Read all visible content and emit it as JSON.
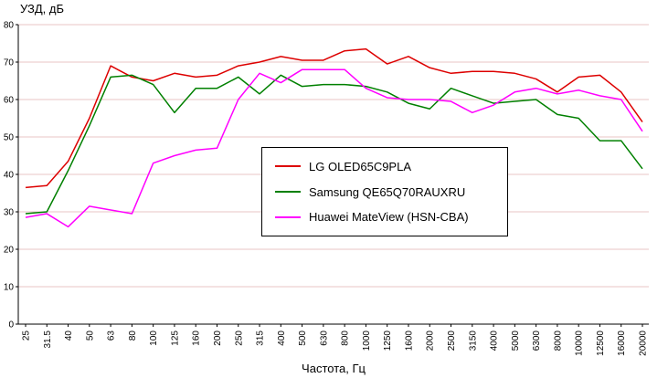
{
  "chart_data": {
    "type": "line",
    "title": "",
    "ylabel": "УЗД, дБ",
    "xlabel": "Частота, Гц",
    "ylim": [
      0,
      80
    ],
    "ytick_step": 10,
    "grid": "horizontal",
    "legend_position": "center",
    "categories": [
      "25",
      "31.5",
      "40",
      "50",
      "63",
      "80",
      "100",
      "125",
      "160",
      "200",
      "250",
      "315",
      "400",
      "500",
      "630",
      "800",
      "1000",
      "1250",
      "1600",
      "2000",
      "2500",
      "3150",
      "4000",
      "5000",
      "6300",
      "8000",
      "10000",
      "12500",
      "16000",
      "20000"
    ],
    "series": [
      {
        "name": "LG OLED65C9PLA",
        "color": "#dd0000",
        "values": [
          36.5,
          37,
          43.5,
          55,
          69,
          66,
          65,
          67,
          66,
          66.5,
          69,
          70,
          71.5,
          70.5,
          70.5,
          73,
          73.5,
          69.5,
          71.5,
          68.5,
          67,
          67.5,
          67.5,
          67,
          65.5,
          62,
          66,
          66.5,
          62,
          54
        ]
      },
      {
        "name": "Samsung QE65Q70RAUXRU",
        "color": "#008000",
        "values": [
          29.5,
          30,
          41,
          53,
          66,
          66.5,
          64,
          56.5,
          63,
          63,
          66,
          61.5,
          66.5,
          63.5,
          64,
          64,
          63.5,
          62,
          59,
          57.5,
          63,
          61,
          59,
          59.5,
          60,
          56,
          55,
          49,
          49,
          41.5
        ]
      },
      {
        "name": "Huawei MateView (HSN-CBA)",
        "color": "#ff00ff",
        "values": [
          28.5,
          29.5,
          26,
          31.5,
          30.5,
          29.5,
          43,
          45,
          46.5,
          47,
          60,
          67,
          64.5,
          68,
          68,
          68,
          63,
          60.5,
          60,
          60,
          59.5,
          56.5,
          58.5,
          62,
          63,
          61.5,
          62.5,
          61,
          60,
          51.5
        ]
      }
    ]
  },
  "colors": {
    "background": "#ffffff",
    "grid": "#e8c4c4",
    "axis": "#000000",
    "text": "#000000"
  }
}
